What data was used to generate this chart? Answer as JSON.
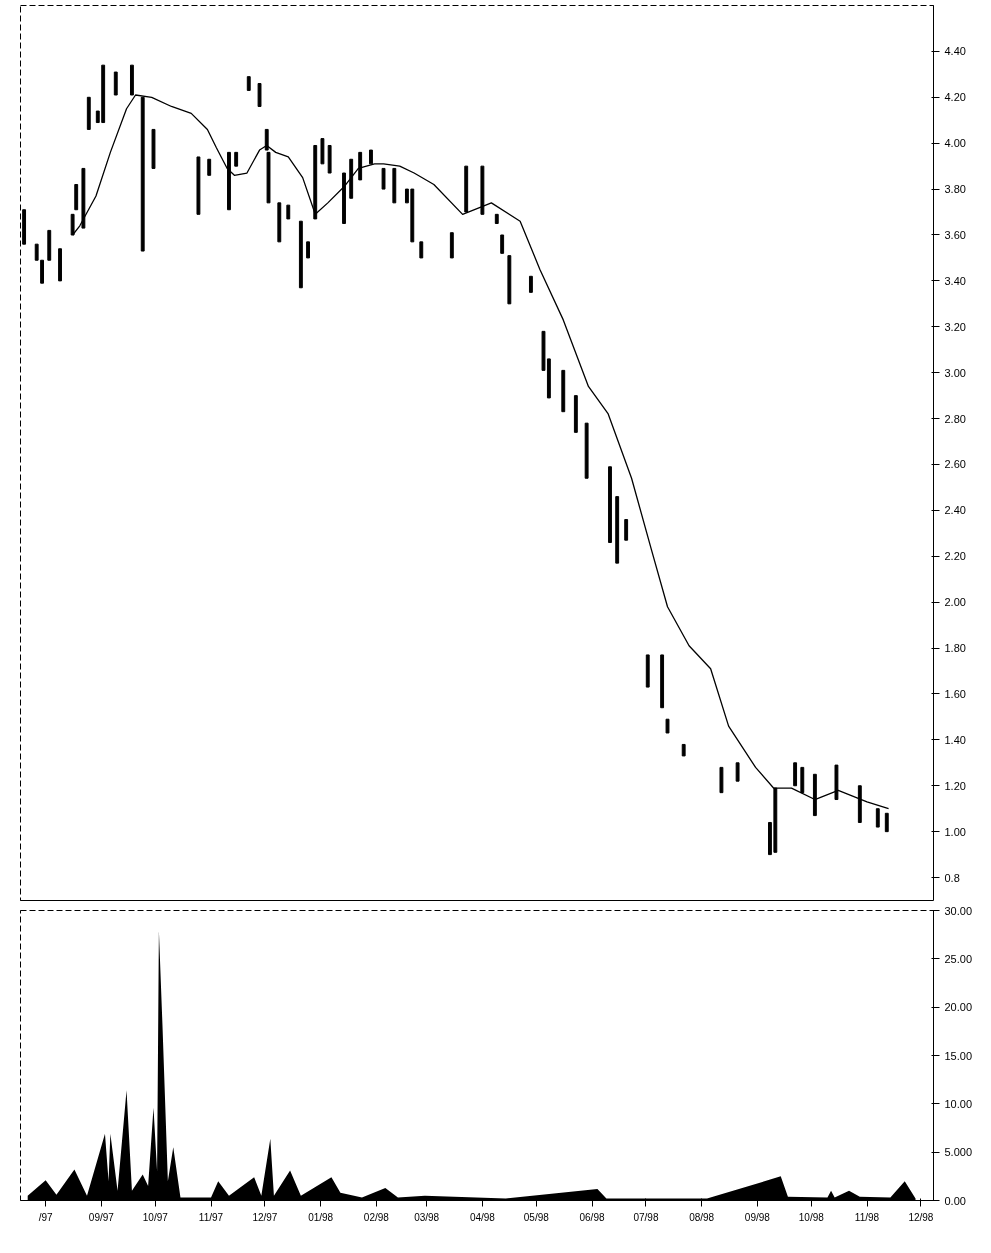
{
  "chart_data": [
    {
      "type": "bar",
      "ylim": [
        0.7,
        4.6
      ],
      "xlim": [
        "1997-07-18",
        "1998-12-08"
      ],
      "yticks": [
        {
          "value": 0.8,
          "label": "0.8"
        },
        {
          "value": 1.0,
          "label": "1.00"
        },
        {
          "value": 1.2,
          "label": "1.20"
        },
        {
          "value": 1.4,
          "label": "1.40"
        },
        {
          "value": 1.6,
          "label": "1.60"
        },
        {
          "value": 1.8,
          "label": "1.80"
        },
        {
          "value": 2.0,
          "label": "2.00"
        },
        {
          "value": 2.2,
          "label": "2.20"
        },
        {
          "value": 2.4,
          "label": "2.40"
        },
        {
          "value": 2.6,
          "label": "2.60"
        },
        {
          "value": 2.8,
          "label": "2.80"
        },
        {
          "value": 3.0,
          "label": "3.00"
        },
        {
          "value": 3.2,
          "label": "3.20"
        },
        {
          "value": 3.4,
          "label": "3.40"
        },
        {
          "value": 3.6,
          "label": "3.60"
        },
        {
          "value": 3.8,
          "label": "3.80"
        },
        {
          "value": 4.0,
          "label": "4.00"
        },
        {
          "value": 4.2,
          "label": "4.20"
        },
        {
          "value": 4.4,
          "label": "4.40"
        }
      ],
      "tick_labels": "y",
      "grid": false,
      "series": [
        {
          "type": "bar",
          "color": "#000000",
          "x": [
            "1997-07-20",
            "1997-07-27",
            "1997-07-30",
            "1997-08-03",
            "1997-08-09",
            "1997-08-16",
            "1997-08-18",
            "1997-08-22",
            "1997-08-25",
            "1997-08-30",
            "1997-09-02",
            "1997-09-09",
            "1997-09-18",
            "1997-09-24",
            "1997-09-30",
            "1997-10-25",
            "1997-10-31",
            "1997-11-11",
            "1997-11-15",
            "1997-11-22",
            "1997-11-28",
            "1997-12-02",
            "1997-12-03",
            "1997-12-09",
            "1997-12-14",
            "1997-12-21",
            "1997-12-25",
            "1997-12-29",
            "1998-01-02",
            "1998-01-06",
            "1998-01-14",
            "1998-01-18",
            "1998-01-23",
            "1998-01-29",
            "1998-02-05",
            "1998-02-11",
            "1998-02-18",
            "1998-02-21",
            "1998-02-26",
            "1998-03-15",
            "1998-03-23",
            "1998-04-01",
            "1998-04-09",
            "1998-04-12",
            "1998-04-16",
            "1998-04-28",
            "1998-05-05",
            "1998-05-08",
            "1998-05-16",
            "1998-05-23",
            "1998-05-29",
            "1998-06-11",
            "1998-06-15",
            "1998-06-20",
            "1998-07-02",
            "1998-07-10",
            "1998-07-13",
            "1998-07-22",
            "1998-08-12",
            "1998-08-21",
            "1998-09-08",
            "1998-09-11",
            "1998-09-22",
            "1998-09-26",
            "1998-10-03",
            "1998-10-15",
            "1998-10-28",
            "1998-11-07",
            "1998-11-12"
          ],
          "base": [
            3.56,
            3.49,
            3.39,
            3.49,
            3.4,
            3.6,
            3.71,
            3.63,
            4.06,
            4.09,
            4.09,
            4.21,
            4.21,
            3.53,
            3.89,
            3.69,
            3.86,
            3.71,
            3.9,
            4.23,
            4.16,
            3.97,
            3.74,
            3.57,
            3.67,
            3.37,
            3.5,
            3.67,
            3.91,
            3.87,
            3.65,
            3.76,
            3.84,
            3.91,
            3.8,
            3.74,
            3.74,
            3.57,
            3.5,
            3.5,
            3.7,
            3.69,
            3.65,
            3.52,
            3.3,
            3.35,
            3.01,
            2.89,
            2.83,
            2.74,
            2.54,
            2.26,
            2.17,
            2.27,
            1.63,
            1.54,
            1.43,
            1.33,
            1.17,
            1.22,
            0.9,
            0.91,
            1.2,
            1.17,
            1.07,
            1.14,
            1.04,
            1.02,
            1.0
          ],
          "values": [
            0.15,
            0.07,
            0.1,
            0.13,
            0.14,
            0.09,
            0.11,
            0.26,
            0.14,
            0.05,
            0.25,
            0.1,
            0.13,
            0.67,
            0.17,
            0.25,
            0.07,
            0.25,
            0.06,
            0.06,
            0.1,
            0.09,
            0.22,
            0.17,
            0.06,
            0.29,
            0.07,
            0.32,
            0.11,
            0.12,
            0.22,
            0.17,
            0.12,
            0.06,
            0.09,
            0.15,
            0.06,
            0.23,
            0.07,
            0.11,
            0.2,
            0.21,
            0.04,
            0.08,
            0.21,
            0.07,
            0.17,
            0.17,
            0.18,
            0.16,
            0.24,
            0.33,
            0.29,
            0.09,
            0.14,
            0.23,
            0.06,
            0.05,
            0.11,
            0.08,
            0.14,
            0.28,
            0.1,
            0.11,
            0.18,
            0.15,
            0.16,
            0.08,
            0.08
          ]
        },
        {
          "type": "line",
          "color": "#000000",
          "line_style": "solid",
          "x": [
            "1997-08-16",
            "1997-08-20",
            "1997-08-29",
            "1997-09-06",
            "1997-09-15",
            "1997-09-20",
            "1997-09-29",
            "1997-10-10",
            "1997-10-21",
            "1997-10-30",
            "1997-11-04",
            "1997-11-10",
            "1997-11-14",
            "1997-11-21",
            "1997-11-28",
            "1997-12-02",
            "1997-12-07",
            "1997-12-14",
            "1997-12-22",
            "1997-12-29",
            "1998-01-05",
            "1998-01-14",
            "1998-01-22",
            "1998-01-31",
            "1998-02-05",
            "1998-02-14",
            "1998-02-22",
            "1998-03-05",
            "1998-03-21",
            "1998-04-06",
            "1998-04-22",
            "1998-05-03",
            "1998-05-16",
            "1998-05-30",
            "1998-06-10",
            "1998-06-23",
            "1998-07-04",
            "1998-07-13",
            "1998-07-25",
            "1998-08-06",
            "1998-08-16",
            "1998-08-31",
            "1998-09-10",
            "1998-09-20",
            "1998-10-03",
            "1998-10-16",
            "1998-11-01",
            "1998-11-13"
          ],
          "values": [
            3.6,
            3.64,
            3.77,
            3.96,
            4.15,
            4.21,
            4.2,
            4.16,
            4.13,
            4.06,
            3.98,
            3.89,
            3.86,
            3.87,
            3.97,
            3.99,
            3.96,
            3.94,
            3.85,
            3.69,
            3.74,
            3.81,
            3.89,
            3.91,
            3.91,
            3.9,
            3.87,
            3.82,
            3.69,
            3.74,
            3.66,
            3.45,
            3.23,
            2.94,
            2.82,
            2.54,
            2.23,
            1.98,
            1.81,
            1.71,
            1.46,
            1.28,
            1.19,
            1.19,
            1.14,
            1.18,
            1.13,
            1.1
          ]
        }
      ]
    },
    {
      "type": "area",
      "color": "#000000",
      "ylim": [
        0,
        30
      ],
      "xlim": [
        "1997-07-18",
        "1998-12-08"
      ],
      "yticks": [
        {
          "value": 0,
          "label": "0.00"
        },
        {
          "value": 5,
          "label": "5.000"
        },
        {
          "value": 10,
          "label": "10.00"
        },
        {
          "value": 15,
          "label": "15.00"
        },
        {
          "value": 20,
          "label": "20.00"
        },
        {
          "value": 25,
          "label": "25.00"
        },
        {
          "value": 30,
          "label": "30.00"
        }
      ],
      "xticks": [
        {
          "value": "1997-08-01",
          "label": "/97"
        },
        {
          "value": "1997-09-01",
          "label": "09/97"
        },
        {
          "value": "1997-10-01",
          "label": "10/97"
        },
        {
          "value": "1997-11-01",
          "label": "11/97"
        },
        {
          "value": "1997-12-01",
          "label": "12/97"
        },
        {
          "value": "1998-01-01",
          "label": "01/98"
        },
        {
          "value": "1998-02-01",
          "label": "02/98"
        },
        {
          "value": "1998-03-01",
          "label": "03/98"
        },
        {
          "value": "1998-04-01",
          "label": "04/98"
        },
        {
          "value": "1998-05-01",
          "label": "05/98"
        },
        {
          "value": "1998-06-01",
          "label": "06/98"
        },
        {
          "value": "1998-07-01",
          "label": "07/98"
        },
        {
          "value": "1998-08-01",
          "label": "08/98"
        },
        {
          "value": "1998-09-01",
          "label": "09/98"
        },
        {
          "value": "1998-10-01",
          "label": "10/98"
        },
        {
          "value": "1998-11-01",
          "label": "11/98"
        },
        {
          "value": "1998-12-01",
          "label": "12/98"
        }
      ],
      "grid": false,
      "x": [
        "1997-07-22",
        "1997-08-01",
        "1997-08-07",
        "1997-08-17",
        "1997-08-24",
        "1997-09-03",
        "1997-09-05",
        "1997-09-06",
        "1997-09-10",
        "1997-09-15",
        "1997-09-18",
        "1997-09-24",
        "1997-09-27",
        "1997-09-30",
        "1997-10-02",
        "1997-10-03",
        "1997-10-05",
        "1997-10-08",
        "1997-10-11",
        "1997-10-15",
        "1997-11-01",
        "1997-11-05",
        "1997-11-11",
        "1997-11-25",
        "1997-11-29",
        "1997-12-04",
        "1997-12-06",
        "1997-12-15",
        "1997-12-21",
        "1998-01-07",
        "1998-01-12",
        "1998-01-24",
        "1998-02-06",
        "1998-02-13",
        "1998-02-28",
        "1998-04-14",
        "1998-06-04",
        "1998-06-09",
        "1998-08-04",
        "1998-09-14",
        "1998-09-18",
        "1998-10-10",
        "1998-10-12",
        "1998-10-14",
        "1998-10-22",
        "1998-10-28",
        "1998-11-14",
        "1998-11-22",
        "1998-11-28"
      ],
      "values": [
        0.5,
        2.1,
        0.6,
        3.2,
        0.5,
        6.9,
        2.0,
        6.9,
        1.0,
        11.4,
        1.0,
        2.7,
        1.5,
        9.6,
        3.0,
        27.9,
        18.1,
        2.0,
        5.5,
        0.3,
        0.3,
        2.0,
        0.5,
        2.4,
        0.5,
        6.4,
        0.5,
        3.1,
        0.5,
        2.4,
        0.8,
        0.3,
        1.3,
        0.3,
        0.5,
        0.2,
        1.2,
        0.2,
        0.2,
        2.5,
        0.4,
        0.3,
        1.0,
        0.3,
        1.0,
        0.4,
        0.3,
        2.0,
        0.2
      ]
    }
  ]
}
